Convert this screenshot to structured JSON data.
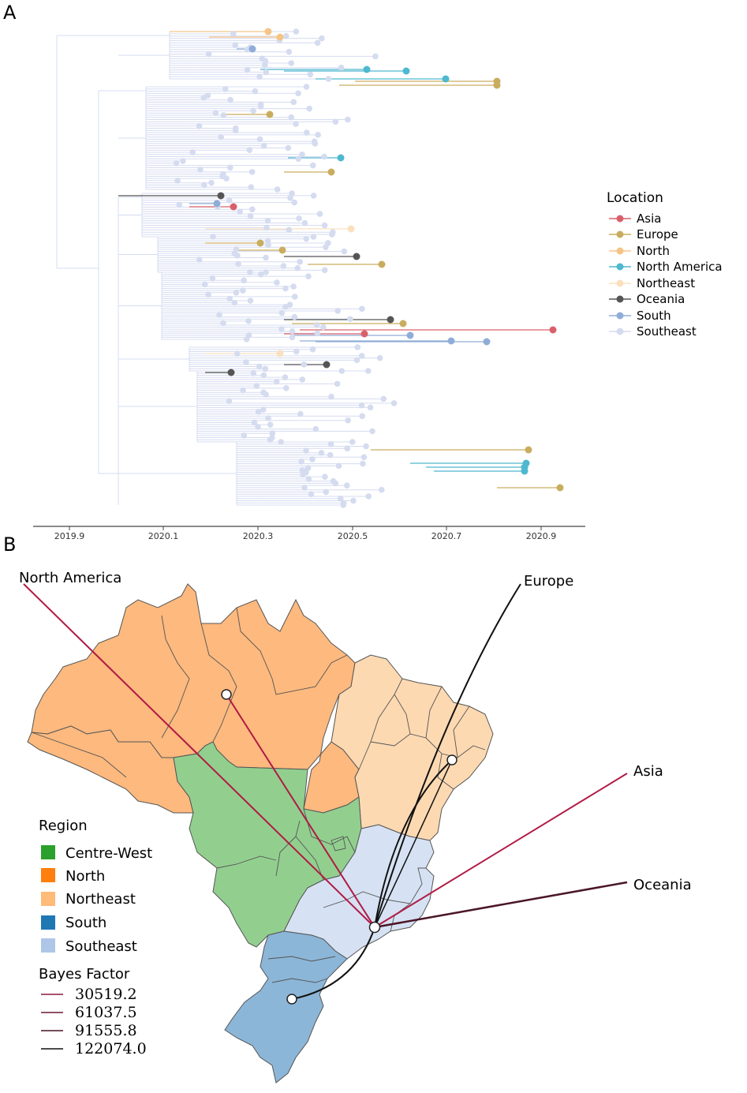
{
  "panel_a": {
    "label": "A",
    "axis_ticks": [
      "2019.9",
      "2020.1",
      "2020.3",
      "2020.5",
      "2020.7",
      "2020.9"
    ],
    "legend": {
      "title": "Location",
      "items": [
        {
          "label": "Asia",
          "color": "#d9606a"
        },
        {
          "label": "Europe",
          "color": "#c9ad5f"
        },
        {
          "label": "North",
          "color": "#f6c486"
        },
        {
          "label": "North America",
          "color": "#4db8cf"
        },
        {
          "label": "Northeast",
          "color": "#fbe0bf"
        },
        {
          "label": "Oceania",
          "color": "#555555"
        },
        {
          "label": "South",
          "color": "#8fadd8"
        },
        {
          "label": "Southeast",
          "color": "#d5dcf0"
        }
      ]
    }
  },
  "panel_b": {
    "label": "B",
    "destinations": [
      "North America",
      "Europe",
      "Asia",
      "Oceania"
    ],
    "region_legend": {
      "title": "Region",
      "items": [
        {
          "label": "Centre-West",
          "color": "#2ca02c"
        },
        {
          "label": "North",
          "color": "#ff7f0e"
        },
        {
          "label": "Northeast",
          "color": "#ffbb78"
        },
        {
          "label": "South",
          "color": "#1f77b4"
        },
        {
          "label": "Southeast",
          "color": "#aec7e8"
        }
      ]
    },
    "bayes_legend": {
      "title": "Bayes Factor",
      "items": [
        {
          "label": "30519.2",
          "color": "#8b1a3c"
        },
        {
          "label": "61037.5",
          "color": "#6b1a34"
        },
        {
          "label": "91555.8",
          "color": "#451225"
        },
        {
          "label": "122074.0",
          "color": "#111111"
        }
      ]
    },
    "map_colors": {
      "north": "#fdb97e",
      "northeast": "#fdd9b2",
      "centre_west": "#92cf8f",
      "southeast": "#d6e2f3",
      "south": "#8cb6d8",
      "route_red": "#b01a44",
      "route_black": "#111111"
    }
  }
}
